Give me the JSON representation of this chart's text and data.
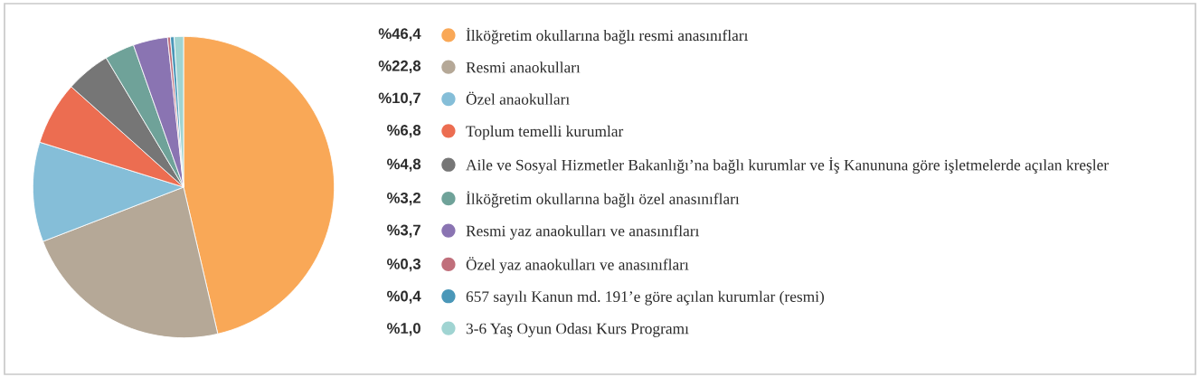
{
  "chart_data": {
    "type": "pie",
    "categories": [
      "İlköğretim okullarına bağlı resmi anasınıfları",
      "Resmi anaokulları",
      "Özel anaokulları",
      "Toplum temelli kurumlar",
      "Aile ve Sosyal Hizmetler Bakanlığı’na bağlı kurumlar ve İş Kanununa göre işletmelerde açılan kreşler",
      "İlköğretim okullarına bağlı özel anasınıfları",
      "Resmi yaz anaokulları ve anasınıfları",
      "Özel yaz anaokulları ve anasınıfları",
      "657 sayılı Kanun md. 191’e göre açılan kurumlar (resmi)",
      "3-6 Yaş Oyun Odası Kurs Programı"
    ],
    "values": [
      46.4,
      22.8,
      10.7,
      6.8,
      4.8,
      3.2,
      3.7,
      0.3,
      0.4,
      1.0
    ],
    "value_labels": [
      "%46,4",
      "%22,8",
      "%10,7",
      "%6,8",
      "%4,8",
      "%3,2",
      "%3,7",
      "%0,3",
      "%0,4",
      "%1,0"
    ],
    "colors": [
      "#f9a857",
      "#b5a897",
      "#85bed8",
      "#ec6d51",
      "#767676",
      "#6fa299",
      "#8a74b2",
      "#c06f7b",
      "#4a97b8",
      "#a0d4d2"
    ],
    "legend": "right"
  }
}
